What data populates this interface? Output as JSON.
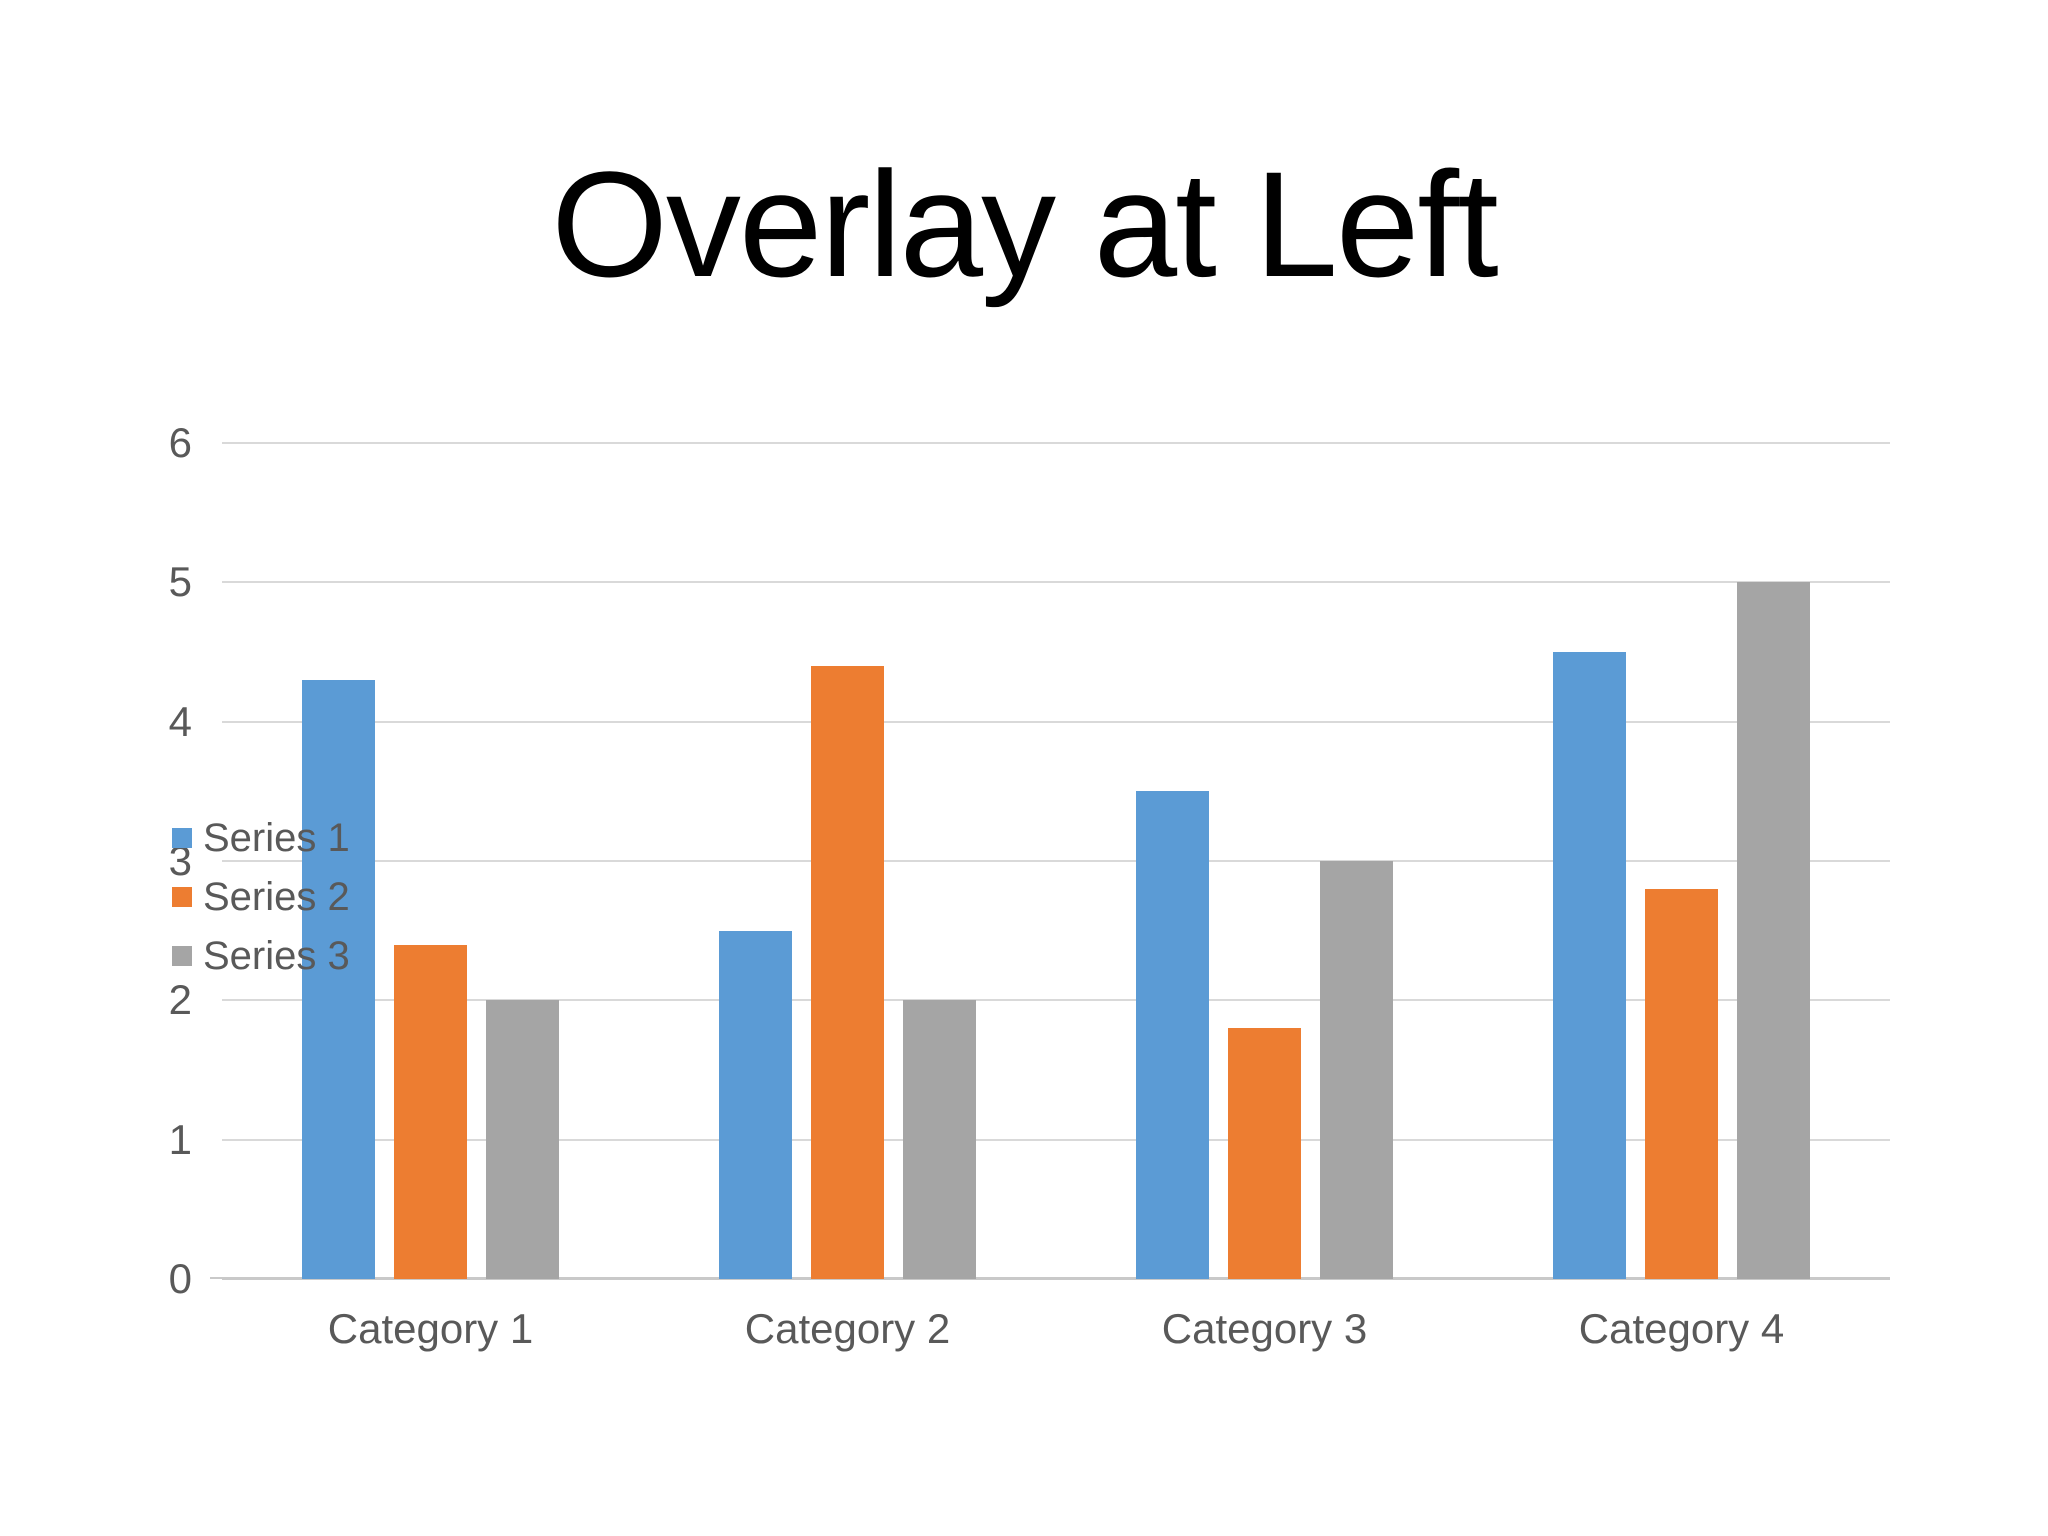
{
  "slide": {
    "title": "Overlay at Left",
    "background": "#ffffff"
  },
  "chart_data": {
    "type": "bar",
    "title": "Overlay at Left",
    "categories": [
      "Category 1",
      "Category 2",
      "Category 3",
      "Category 4"
    ],
    "series": [
      {
        "name": "Series 1",
        "color": "#5B9BD5",
        "values": [
          4.3,
          2.5,
          3.5,
          4.5
        ]
      },
      {
        "name": "Series 2",
        "color": "#ED7D31",
        "values": [
          2.4,
          4.4,
          1.8,
          2.8
        ]
      },
      {
        "name": "Series 3",
        "color": "#A5A5A5",
        "values": [
          2,
          2,
          3,
          5
        ]
      }
    ],
    "y_axis": {
      "min": 0,
      "max": 6,
      "tick_step": 1,
      "ticks": [
        6,
        5,
        4,
        3,
        2,
        1,
        0
      ]
    },
    "xlabel": "",
    "ylabel": "",
    "ylim": [
      0,
      6
    ],
    "grid": true,
    "gridline_color": "#D9D9D9",
    "axis_line_color": "#C9C9C9",
    "axis_text_color": "#595959",
    "legend": {
      "position": "overlay-left",
      "entries": [
        "Series 1",
        "Series 2",
        "Series 3"
      ]
    }
  }
}
